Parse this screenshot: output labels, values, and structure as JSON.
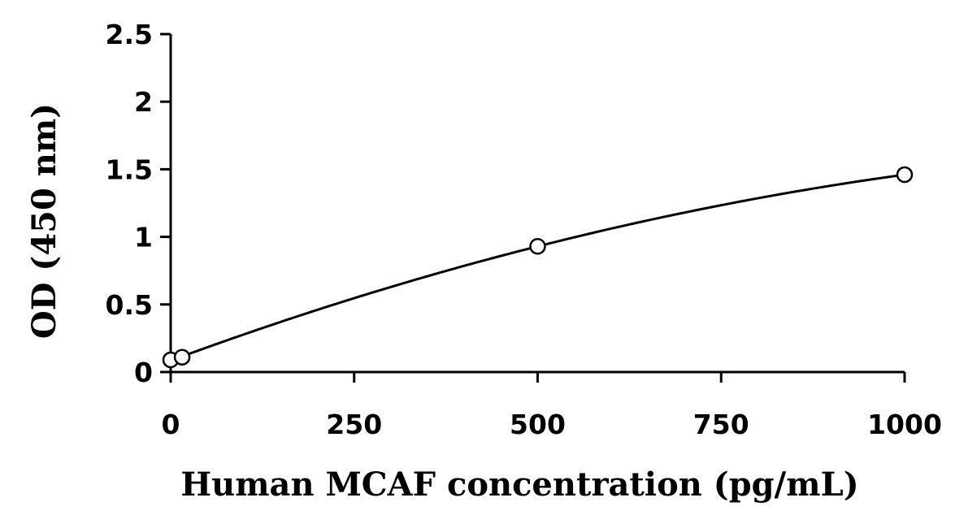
{
  "chart_data": {
    "type": "scatter",
    "title": "",
    "xlabel": "Human MCAF concentration (pg/mL)",
    "ylabel": "OD (450 nm)",
    "xlim": [
      0,
      1000
    ],
    "ylim": [
      0,
      2.5
    ],
    "x_ticks": [
      "0",
      "250",
      "500",
      "750",
      "1000"
    ],
    "y_ticks": [
      "0",
      "0.5",
      "1",
      "1.5",
      "2",
      "2.5"
    ],
    "grid": false,
    "legend": "none",
    "marker": "open-circle",
    "trendline": "smooth fitted curve through standards",
    "series": [
      {
        "x": [
          0,
          15.6,
          500,
          1000
        ],
        "y": [
          0.09,
          0.11,
          0.93,
          1.46
        ]
      }
    ],
    "colors": {
      "line": "#000000",
      "marker_fill": "#ffffff",
      "marker_stroke": "#000000"
    }
  }
}
